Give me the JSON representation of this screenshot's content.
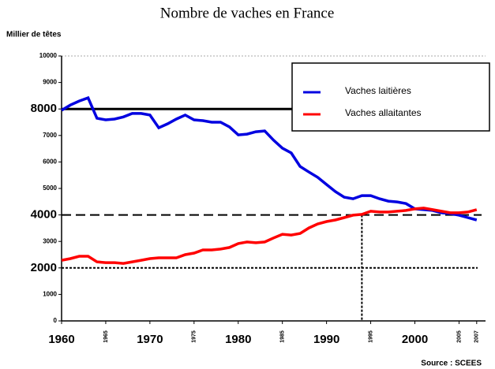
{
  "chart_data": {
    "type": "line",
    "title": "Nombre de vaches en France",
    "y_label": "Millier de têtes",
    "source": "Source : SCEES",
    "x": [
      1960,
      1961,
      1962,
      1963,
      1964,
      1965,
      1966,
      1967,
      1968,
      1969,
      1970,
      1971,
      1972,
      1973,
      1974,
      1975,
      1976,
      1977,
      1978,
      1979,
      1980,
      1981,
      1982,
      1983,
      1984,
      1985,
      1986,
      1987,
      1988,
      1989,
      1990,
      1991,
      1992,
      1993,
      1994,
      1995,
      1996,
      1997,
      1998,
      1999,
      2000,
      2001,
      2002,
      2003,
      2004,
      2005,
      2006,
      2007
    ],
    "series": [
      {
        "name": "Vaches laitières",
        "color": "#0000e0",
        "values": [
          7950,
          8150,
          8300,
          8420,
          7650,
          7590,
          7620,
          7700,
          7830,
          7830,
          7770,
          7290,
          7440,
          7620,
          7770,
          7590,
          7560,
          7500,
          7500,
          7320,
          7020,
          7050,
          7140,
          7170,
          6820,
          6520,
          6340,
          5830,
          5620,
          5420,
          5150,
          4880,
          4670,
          4610,
          4730,
          4730,
          4610,
          4520,
          4490,
          4430,
          4230,
          4200,
          4170,
          4080,
          4050,
          3990,
          3900,
          3810
        ]
      },
      {
        "name": "Vaches allaitantes",
        "color": "#ff0000",
        "values": [
          2290,
          2350,
          2440,
          2440,
          2230,
          2200,
          2200,
          2170,
          2230,
          2290,
          2350,
          2380,
          2380,
          2380,
          2500,
          2560,
          2680,
          2680,
          2710,
          2770,
          2920,
          2980,
          2950,
          2980,
          3130,
          3270,
          3240,
          3300,
          3510,
          3660,
          3750,
          3810,
          3900,
          3990,
          4020,
          4140,
          4110,
          4110,
          4140,
          4170,
          4230,
          4260,
          4200,
          4140,
          4080,
          4080,
          4110,
          4200
        ]
      }
    ],
    "xlim": [
      1960,
      2008
    ],
    "ylim": [
      0,
      10000
    ],
    "yticks": [
      0,
      1000,
      2000,
      3000,
      4000,
      5000,
      6000,
      7000,
      8000,
      9000,
      10000
    ],
    "xticks": [
      1960,
      1965,
      1970,
      1975,
      1980,
      1985,
      1990,
      1995,
      2000,
      2005,
      2007
    ],
    "reference_lines": [
      8000,
      4000,
      2000
    ],
    "reference_x": 1994
  }
}
